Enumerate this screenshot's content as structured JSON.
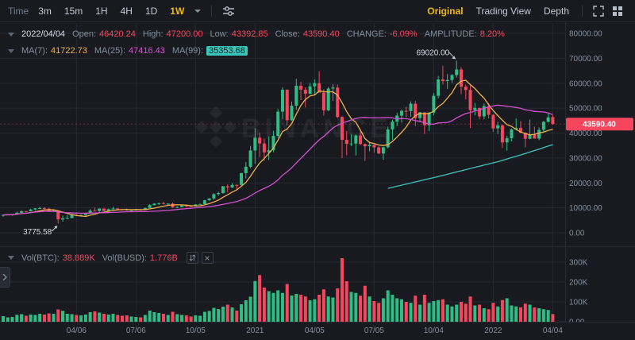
{
  "toolbar": {
    "time_label": "Time",
    "intervals": [
      "3m",
      "15m",
      "1H",
      "4H",
      "1D",
      "1W"
    ],
    "selected_interval": "1W",
    "views": [
      "Original",
      "Trading View",
      "Depth"
    ],
    "selected_view": "Original"
  },
  "ohlc": {
    "date": "2022/04/04",
    "fields": [
      {
        "label": "Open:",
        "value": "46420.24"
      },
      {
        "label": "High:",
        "value": "47200.00"
      },
      {
        "label": "Low:",
        "value": "43392.85"
      },
      {
        "label": "Close:",
        "value": "43590.40"
      },
      {
        "label": "CHANGE:",
        "value": "-6.09%"
      },
      {
        "label": "AMPLITUDE:",
        "value": "8.20%"
      }
    ]
  },
  "indicators": {
    "items": [
      {
        "label": "MA(7):",
        "value": "41722.73"
      },
      {
        "label": "MA(25):",
        "value": "47416.43"
      },
      {
        "label": "MA(99):",
        "value": "35353.68"
      }
    ]
  },
  "volume_bar": {
    "items": [
      {
        "label": "Vol(BTC):",
        "value": "38.889K"
      },
      {
        "label": "Vol(BUSD):",
        "value": "1.776B"
      }
    ]
  },
  "price_badge": "43590.40",
  "watermark": "BINANCE",
  "icons": {
    "interval-dropdown": "caret-down",
    "indicator-settings": "sliders",
    "fullscreen": "expand-corners",
    "layout-grid": "grid-2x2",
    "pane-expand": "arrows-up-down",
    "pane-close": "x",
    "sidebar-expand": "chevron-right",
    "row-collapse": "caret-down"
  },
  "colors": {
    "up": "#2ebd85",
    "down": "#f6465d",
    "accent": "#f0b90b",
    "ma7": "#f0b04c",
    "ma25": "#d44fd0",
    "ma99": "#36c6bc",
    "axis_text": "#848e9c",
    "grid": "#252a31",
    "badge_text": "#ffffff"
  },
  "chart_data": {
    "type": "candlestick",
    "title": "BTC/BUSD 1W kline with MA(7), MA(25), MA(99) and volume",
    "price_axis": {
      "min": 0,
      "max": 80000,
      "tick_values": [
        80000,
        70000,
        60000,
        50000,
        40000,
        30000,
        20000,
        10000,
        0
      ],
      "tick_labels": [
        "80000.00",
        "70000.00",
        "60000.00",
        "50000.00",
        "40000.00",
        "30000.00",
        "20000.00",
        "10000.00",
        "0.00"
      ]
    },
    "volume_axis": {
      "unit": "K",
      "tick_values": [
        300,
        200,
        100,
        0
      ],
      "tick_labels": [
        "300K",
        "200K",
        "100K",
        "0.00"
      ]
    },
    "time_axis": {
      "labels": [
        "04/06",
        "07/06",
        "10/05",
        "2021",
        "04/05",
        "07/05",
        "10/04",
        "2022",
        "04/04"
      ],
      "indices": [
        16,
        29,
        42,
        55,
        68,
        81,
        94,
        107,
        120
      ]
    },
    "last_price": 43590.4,
    "high_annotation": {
      "index": 99,
      "price": 69020.0,
      "label": "69020.00"
    },
    "low_annotation": {
      "index": 12,
      "price": 3775.58,
      "label": "3775.58"
    },
    "ma_periods": [
      7,
      25
    ],
    "ma99_points": [
      [
        84,
        17800
      ],
      [
        90,
        20400
      ],
      [
        96,
        23000
      ],
      [
        102,
        25800
      ],
      [
        108,
        28500
      ],
      [
        114,
        31800
      ],
      [
        120,
        35353.68
      ]
    ],
    "candles": [
      [
        7120,
        7380,
        6420,
        7150,
        28
      ],
      [
        7150,
        7520,
        7070,
        7290,
        22
      ],
      [
        7290,
        7500,
        6850,
        7350,
        24
      ],
      [
        7350,
        8460,
        7320,
        8020,
        35
      ],
      [
        8020,
        9000,
        8000,
        8640,
        38
      ],
      [
        8640,
        8790,
        8220,
        8600,
        30
      ],
      [
        8600,
        9580,
        8520,
        9330,
        36
      ],
      [
        9330,
        9860,
        9090,
        9800,
        34
      ],
      [
        9800,
        10500,
        9720,
        9900,
        40
      ],
      [
        9900,
        10280,
        9410,
        9660,
        36
      ],
      [
        9660,
        9990,
        8520,
        8580,
        42
      ],
      [
        8580,
        9190,
        8410,
        8890,
        40
      ],
      [
        8890,
        8900,
        3775.58,
        5350,
        62
      ],
      [
        5350,
        6940,
        4480,
        5800,
        55
      ],
      [
        5800,
        6990,
        5670,
        5880,
        40
      ],
      [
        5880,
        7300,
        5850,
        7100,
        38
      ],
      [
        7100,
        7470,
        6750,
        6880,
        34
      ],
      [
        6880,
        7290,
        6450,
        7130,
        32
      ],
      [
        7130,
        7780,
        6760,
        7700,
        36
      ],
      [
        7700,
        9470,
        7620,
        8900,
        48
      ],
      [
        8900,
        10070,
        8520,
        8720,
        52
      ],
      [
        8720,
        9950,
        8100,
        9670,
        46
      ],
      [
        9670,
        9950,
        8660,
        8710,
        40
      ],
      [
        8710,
        9680,
        8640,
        9440,
        36
      ],
      [
        9440,
        10430,
        9320,
        9750,
        40
      ],
      [
        9750,
        9990,
        8900,
        9340,
        34
      ],
      [
        9340,
        9590,
        8910,
        9300,
        30
      ],
      [
        9300,
        9780,
        8830,
        9010,
        32
      ],
      [
        9010,
        9290,
        8890,
        9070,
        26
      ],
      [
        9070,
        9480,
        9010,
        9300,
        24
      ],
      [
        9300,
        9450,
        9040,
        9160,
        22
      ],
      [
        9160,
        10130,
        9100,
        9930,
        34
      ],
      [
        9930,
        11450,
        9900,
        11080,
        56
      ],
      [
        11080,
        11900,
        10960,
        11680,
        48
      ],
      [
        11680,
        12090,
        11130,
        11850,
        44
      ],
      [
        11850,
        12470,
        11400,
        11650,
        40
      ],
      [
        11650,
        11780,
        11120,
        11710,
        34
      ],
      [
        11710,
        12070,
        9960,
        10170,
        50
      ],
      [
        10170,
        10580,
        9830,
        10330,
        38
      ],
      [
        10330,
        11100,
        10210,
        10920,
        34
      ],
      [
        10920,
        10950,
        10140,
        10690,
        32
      ],
      [
        10690,
        10920,
        10380,
        10550,
        26
      ],
      [
        10550,
        11480,
        10500,
        11370,
        32
      ],
      [
        11370,
        11720,
        11200,
        11510,
        30
      ],
      [
        11510,
        13220,
        11400,
        13030,
        50
      ],
      [
        13030,
        13850,
        12880,
        13770,
        54
      ],
      [
        13770,
        15950,
        13250,
        15480,
        70
      ],
      [
        15480,
        16480,
        14800,
        15950,
        64
      ],
      [
        15950,
        18800,
        15650,
        18660,
        76
      ],
      [
        18660,
        19400,
        16200,
        18190,
        86
      ],
      [
        18190,
        19900,
        18000,
        19170,
        72
      ],
      [
        19170,
        19420,
        17570,
        19160,
        56
      ],
      [
        19160,
        24100,
        19050,
        23900,
        88
      ],
      [
        23900,
        28400,
        21800,
        26500,
        108
      ],
      [
        26500,
        34800,
        25850,
        33000,
        126
      ],
      [
        33000,
        41950,
        27700,
        38150,
        205
      ],
      [
        38150,
        40100,
        30400,
        35800,
        235
      ],
      [
        35800,
        37850,
        28850,
        32250,
        172
      ],
      [
        32250,
        38600,
        29240,
        33100,
        154
      ],
      [
        33100,
        40950,
        32300,
        38870,
        145
      ],
      [
        38870,
        49700,
        38000,
        48580,
        158
      ],
      [
        48580,
        58350,
        45570,
        57400,
        145
      ],
      [
        57400,
        57500,
        43000,
        45140,
        190
      ],
      [
        45140,
        52640,
        44950,
        50970,
        132
      ],
      [
        50970,
        61800,
        49270,
        59000,
        140
      ],
      [
        59000,
        60600,
        53200,
        57400,
        136
      ],
      [
        57400,
        58400,
        50300,
        55780,
        127
      ],
      [
        55780,
        60200,
        55500,
        58750,
        108
      ],
      [
        58750,
        61500,
        55400,
        60000,
        113
      ],
      [
        60000,
        64850,
        59550,
        56200,
        136
      ],
      [
        56200,
        57600,
        47000,
        49100,
        163
      ],
      [
        49100,
        58500,
        48800,
        57830,
        127
      ],
      [
        57830,
        59600,
        52900,
        58250,
        122
      ],
      [
        58250,
        59500,
        46000,
        46450,
        168
      ],
      [
        46450,
        46700,
        30000,
        37300,
        320
      ],
      [
        37300,
        40900,
        31100,
        35660,
        204
      ],
      [
        35660,
        39500,
        34800,
        35800,
        150
      ],
      [
        35800,
        39380,
        31000,
        39000,
        145
      ],
      [
        39000,
        41000,
        35130,
        35600,
        131
      ],
      [
        35600,
        35750,
        28800,
        34700,
        181
      ],
      [
        34700,
        36600,
        32700,
        35300,
        127
      ],
      [
        35300,
        35300,
        32100,
        34250,
        104
      ],
      [
        34250,
        34650,
        31550,
        31800,
        95
      ],
      [
        31800,
        34500,
        29300,
        34290,
        118
      ],
      [
        34290,
        42600,
        33850,
        41460,
        158
      ],
      [
        41460,
        45300,
        37330,
        44600,
        136
      ],
      [
        44600,
        48150,
        42800,
        47000,
        118
      ],
      [
        47000,
        49400,
        44200,
        48900,
        113
      ],
      [
        48900,
        50500,
        46350,
        48800,
        100
      ],
      [
        48800,
        52700,
        46500,
        51800,
        95
      ],
      [
        51800,
        52900,
        42800,
        46000,
        131
      ],
      [
        46000,
        48500,
        44350,
        48300,
        86
      ],
      [
        48300,
        48350,
        39600,
        43160,
        136
      ],
      [
        43160,
        48500,
        40750,
        48200,
        95
      ],
      [
        48200,
        56100,
        47100,
        54950,
        104
      ],
      [
        54950,
        62900,
        53880,
        61500,
        109
      ],
      [
        61500,
        67000,
        59500,
        60850,
        113
      ],
      [
        60850,
        63700,
        57700,
        61300,
        86
      ],
      [
        61300,
        63590,
        60100,
        63270,
        77
      ],
      [
        63270,
        69020,
        62280,
        65500,
        86
      ],
      [
        65500,
        66400,
        55600,
        58600,
        100
      ],
      [
        58600,
        59450,
        53500,
        57270,
        91
      ],
      [
        57270,
        59100,
        42000,
        49200,
        127
      ],
      [
        49200,
        52100,
        47100,
        50100,
        82
      ],
      [
        50100,
        50200,
        45550,
        46700,
        86
      ],
      [
        46700,
        51900,
        45600,
        50800,
        68
      ],
      [
        50800,
        52100,
        45900,
        47300,
        63
      ],
      [
        47300,
        47580,
        40500,
        41850,
        95
      ],
      [
        41850,
        44500,
        39600,
        43100,
        77
      ],
      [
        43100,
        43500,
        34000,
        36240,
        109
      ],
      [
        36240,
        38950,
        32930,
        37920,
        118
      ],
      [
        37920,
        41770,
        36650,
        41500,
        82
      ],
      [
        41500,
        45850,
        41120,
        42100,
        77
      ],
      [
        42100,
        44750,
        40070,
        40100,
        72
      ],
      [
        40100,
        40300,
        34300,
        37710,
        91
      ],
      [
        37710,
        45400,
        37450,
        39400,
        86
      ],
      [
        39400,
        42590,
        38220,
        37790,
        72
      ],
      [
        37790,
        42320,
        37160,
        41280,
        68
      ],
      [
        41280,
        44800,
        40580,
        44540,
        63
      ],
      [
        44540,
        48200,
        44220,
        46280,
        59
      ],
      [
        46420.24,
        47200,
        43392.85,
        43590.4,
        38.889
      ]
    ]
  }
}
